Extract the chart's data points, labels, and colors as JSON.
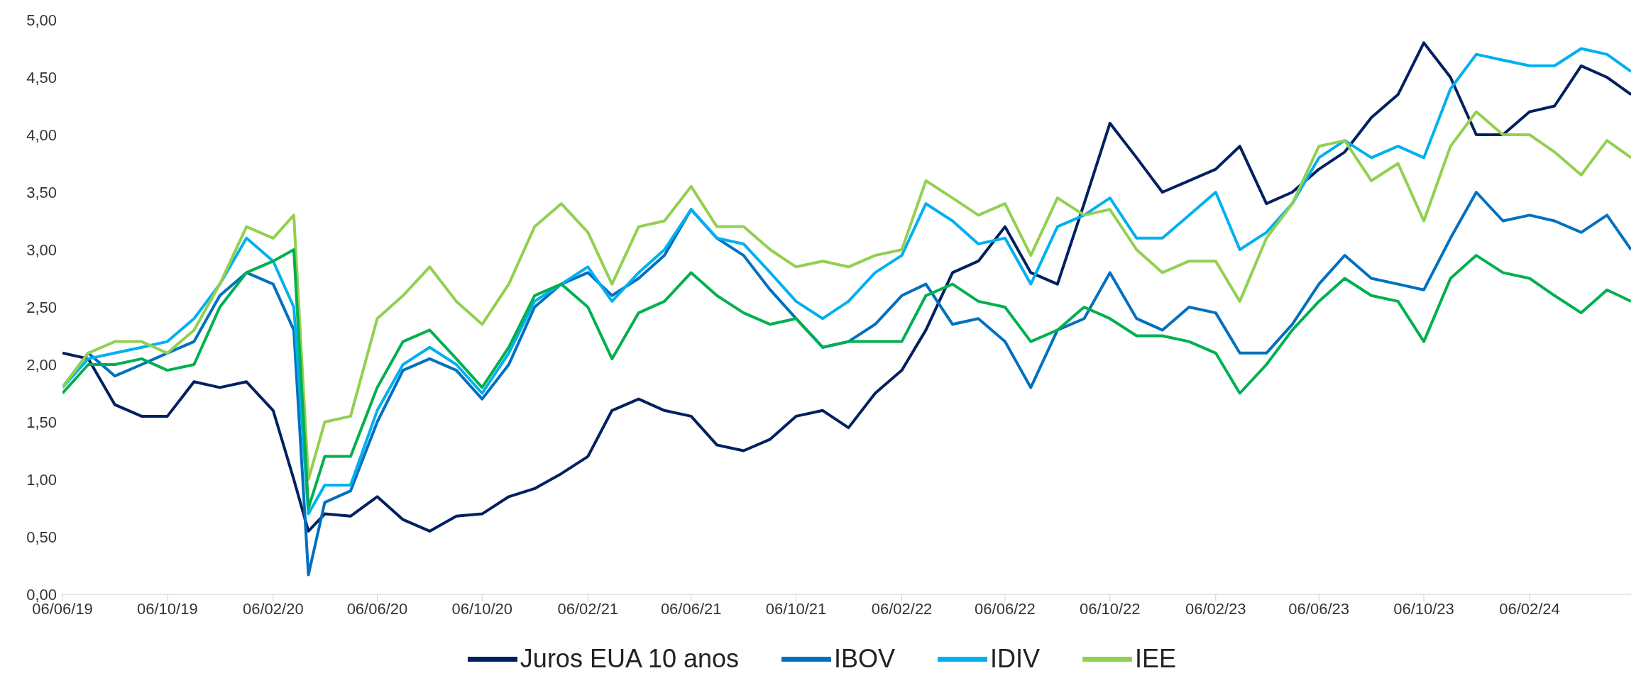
{
  "chart_data": {
    "type": "line",
    "x": [
      "2019-06-06",
      "2019-07-06",
      "2019-08-06",
      "2019-09-06",
      "2019-10-06",
      "2019-11-06",
      "2019-12-06",
      "2020-01-06",
      "2020-02-06",
      "2020-03-01",
      "2020-03-18",
      "2020-04-06",
      "2020-05-06",
      "2020-06-06",
      "2020-07-06",
      "2020-08-06",
      "2020-09-06",
      "2020-10-06",
      "2020-11-06",
      "2020-12-06",
      "2021-01-06",
      "2021-02-06",
      "2021-03-06",
      "2021-04-06",
      "2021-05-06",
      "2021-06-06",
      "2021-07-06",
      "2021-08-06",
      "2021-09-06",
      "2021-10-06",
      "2021-11-06",
      "2021-12-06",
      "2022-01-06",
      "2022-02-06",
      "2022-03-06",
      "2022-04-06",
      "2022-05-06",
      "2022-06-06",
      "2022-07-06",
      "2022-08-06",
      "2022-09-06",
      "2022-10-06",
      "2022-11-06",
      "2022-12-06",
      "2023-01-06",
      "2023-02-06",
      "2023-03-06",
      "2023-04-06",
      "2023-05-06",
      "2023-06-06",
      "2023-07-06",
      "2023-08-06",
      "2023-09-06",
      "2023-10-06",
      "2023-11-06",
      "2023-12-06",
      "2024-01-06",
      "2024-02-06",
      "2024-03-06",
      "2024-04-06",
      "2024-05-06",
      "2024-06-03"
    ],
    "series": [
      {
        "name": "Juros EUA 10 anos",
        "color": "#002060",
        "values": [
          2.1,
          2.05,
          1.65,
          1.55,
          1.55,
          1.85,
          1.8,
          1.85,
          1.6,
          1.0,
          0.55,
          0.7,
          0.68,
          0.85,
          0.65,
          0.55,
          0.68,
          0.7,
          0.85,
          0.92,
          1.05,
          1.2,
          1.6,
          1.7,
          1.6,
          1.55,
          1.3,
          1.25,
          1.35,
          1.55,
          1.6,
          1.45,
          1.75,
          1.95,
          2.3,
          2.8,
          2.9,
          3.2,
          2.8,
          2.7,
          3.4,
          4.1,
          3.8,
          3.5,
          3.6,
          3.7,
          3.9,
          3.4,
          3.5,
          3.7,
          3.85,
          4.15,
          4.35,
          4.8,
          4.5,
          4.0,
          4.0,
          4.2,
          4.25,
          4.6,
          4.5,
          4.35
        ]
      },
      {
        "name": "IBOV",
        "color": "#0070c0",
        "values": [
          1.8,
          2.1,
          1.9,
          2.0,
          2.1,
          2.2,
          2.6,
          2.8,
          2.7,
          2.3,
          0.17,
          0.8,
          0.9,
          1.5,
          1.95,
          2.05,
          1.95,
          1.7,
          2.0,
          2.5,
          2.7,
          2.8,
          2.6,
          2.75,
          2.95,
          3.35,
          3.1,
          2.95,
          2.65,
          2.4,
          2.15,
          2.2,
          2.35,
          2.6,
          2.7,
          2.35,
          2.4,
          2.2,
          1.8,
          2.3,
          2.4,
          2.8,
          2.4,
          2.3,
          2.5,
          2.45,
          2.1,
          2.1,
          2.35,
          2.7,
          2.95,
          2.75,
          2.7,
          2.65,
          3.1,
          3.5,
          3.25,
          3.3,
          3.25,
          3.15,
          3.3,
          3.0
        ]
      },
      {
        "name": "IDIV",
        "color": "#00b0f0",
        "values": [
          1.8,
          2.05,
          2.1,
          2.15,
          2.2,
          2.4,
          2.7,
          3.1,
          2.9,
          2.5,
          0.7,
          0.95,
          0.95,
          1.6,
          2.0,
          2.15,
          2.0,
          1.75,
          2.1,
          2.55,
          2.7,
          2.85,
          2.55,
          2.8,
          3.0,
          3.35,
          3.1,
          3.05,
          2.8,
          2.55,
          2.4,
          2.55,
          2.8,
          2.95,
          3.4,
          3.25,
          3.05,
          3.1,
          2.7,
          3.2,
          3.3,
          3.45,
          3.1,
          3.1,
          3.3,
          3.5,
          3.0,
          3.15,
          3.4,
          3.8,
          3.95,
          3.8,
          3.9,
          3.8,
          4.4,
          4.7,
          4.65,
          4.6,
          4.6,
          4.75,
          4.7,
          4.55
        ]
      },
      {
        "name": "IEE",
        "color": "#92d050",
        "values": [
          1.8,
          2.1,
          2.2,
          2.2,
          2.1,
          2.3,
          2.7,
          3.2,
          3.1,
          3.3,
          1.0,
          1.5,
          1.55,
          2.4,
          2.6,
          2.85,
          2.55,
          2.35,
          2.7,
          3.2,
          3.4,
          3.15,
          2.7,
          3.2,
          3.25,
          3.55,
          3.2,
          3.2,
          3.0,
          2.85,
          2.9,
          2.85,
          2.95,
          3.0,
          3.6,
          3.45,
          3.3,
          3.4,
          2.95,
          3.45,
          3.3,
          3.35,
          3.0,
          2.8,
          2.9,
          2.9,
          2.55,
          3.1,
          3.4,
          3.9,
          3.95,
          3.6,
          3.75,
          3.25,
          3.9,
          4.2,
          4.0,
          4.0,
          3.85,
          3.65,
          3.95,
          3.8
        ]
      },
      {
        "color": "#00b050",
        "values": [
          1.75,
          2.0,
          2.0,
          2.05,
          1.95,
          2.0,
          2.5,
          2.8,
          2.9,
          3.0,
          0.75,
          1.2,
          1.2,
          1.8,
          2.2,
          2.3,
          2.05,
          1.8,
          2.15,
          2.6,
          2.7,
          2.5,
          2.05,
          2.45,
          2.55,
          2.8,
          2.6,
          2.45,
          2.35,
          2.4,
          2.15,
          2.2,
          2.2,
          2.2,
          2.6,
          2.7,
          2.55,
          2.5,
          2.2,
          2.3,
          2.5,
          2.4,
          2.25,
          2.25,
          2.2,
          2.1,
          1.75,
          2.0,
          2.3,
          2.55,
          2.75,
          2.6,
          2.55,
          2.2,
          2.75,
          2.95,
          2.8,
          2.75,
          2.6,
          2.45,
          2.65,
          2.55
        ]
      }
    ],
    "xlim": [
      "2019-06-06",
      "2024-06-03"
    ],
    "xticks": [
      {
        "value": "2019-06-06",
        "label": "06/06/19"
      },
      {
        "value": "2019-10-06",
        "label": "06/10/19"
      },
      {
        "value": "2020-02-06",
        "label": "06/02/20"
      },
      {
        "value": "2020-06-06",
        "label": "06/06/20"
      },
      {
        "value": "2020-10-06",
        "label": "06/10/20"
      },
      {
        "value": "2021-02-06",
        "label": "06/02/21"
      },
      {
        "value": "2021-06-06",
        "label": "06/06/21"
      },
      {
        "value": "2021-10-06",
        "label": "06/10/21"
      },
      {
        "value": "2022-02-06",
        "label": "06/02/22"
      },
      {
        "value": "2022-06-06",
        "label": "06/06/22"
      },
      {
        "value": "2022-10-06",
        "label": "06/10/22"
      },
      {
        "value": "2023-02-06",
        "label": "06/02/23"
      },
      {
        "value": "2023-06-06",
        "label": "06/06/23"
      },
      {
        "value": "2023-10-06",
        "label": "06/10/23"
      },
      {
        "value": "2024-02-06",
        "label": "06/02/24"
      }
    ],
    "ylim": [
      0,
      5
    ],
    "yticks": [
      {
        "value": 0,
        "label": "0,00"
      },
      {
        "value": 0.5,
        "label": "0,50"
      },
      {
        "value": 1,
        "label": "1,00"
      },
      {
        "value": 1.5,
        "label": "1,50"
      },
      {
        "value": 2,
        "label": "2,00"
      },
      {
        "value": 2.5,
        "label": "2,50"
      },
      {
        "value": 3,
        "label": "3,00"
      },
      {
        "value": 3.5,
        "label": "3,50"
      },
      {
        "value": 4,
        "label": "4,00"
      },
      {
        "value": 4.5,
        "label": "4,50"
      },
      {
        "value": 5,
        "label": "5,00"
      }
    ],
    "grid": false,
    "legend": "bottom",
    "marker": "none",
    "line_style": "solid"
  }
}
